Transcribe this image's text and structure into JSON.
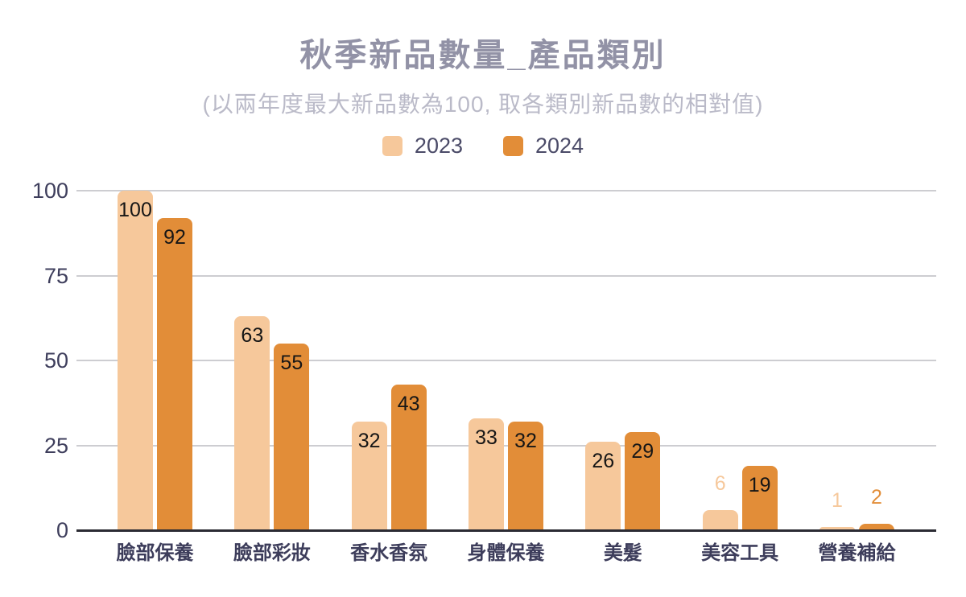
{
  "chart_data": {
    "type": "bar",
    "title": "秋季新品數量_產品類別",
    "subtitle": "(以兩年度最大新品數為100, 取各類別新品數的相對值)",
    "categories": [
      "臉部保養",
      "臉部彩妝",
      "香水香氛",
      "身體保養",
      "美髮",
      "美容工具",
      "營養補給"
    ],
    "series": [
      {
        "name": "2023",
        "color": "#F6C89B",
        "values": [
          100,
          63,
          32,
          33,
          26,
          6,
          1
        ]
      },
      {
        "name": "2024",
        "color": "#E28D38",
        "values": [
          92,
          55,
          43,
          32,
          29,
          19,
          2
        ]
      }
    ],
    "yticks": [
      0,
      25,
      50,
      75,
      100
    ],
    "ylim": [
      0,
      100
    ],
    "grid": true,
    "legend_position": "top",
    "xlabel": "",
    "ylabel": ""
  },
  "colors": {
    "title_text": "#9292A6",
    "subtitle_text": "#BABAC8",
    "legend_text": "#4B4B68",
    "axis_text": "#3E3E5C",
    "category_text": "#3D3D5B",
    "gridline": "#CDCDD1",
    "axis_baseline": "#2B2B33",
    "value_label_inside": "#161616",
    "background": "#FFFFFF"
  }
}
